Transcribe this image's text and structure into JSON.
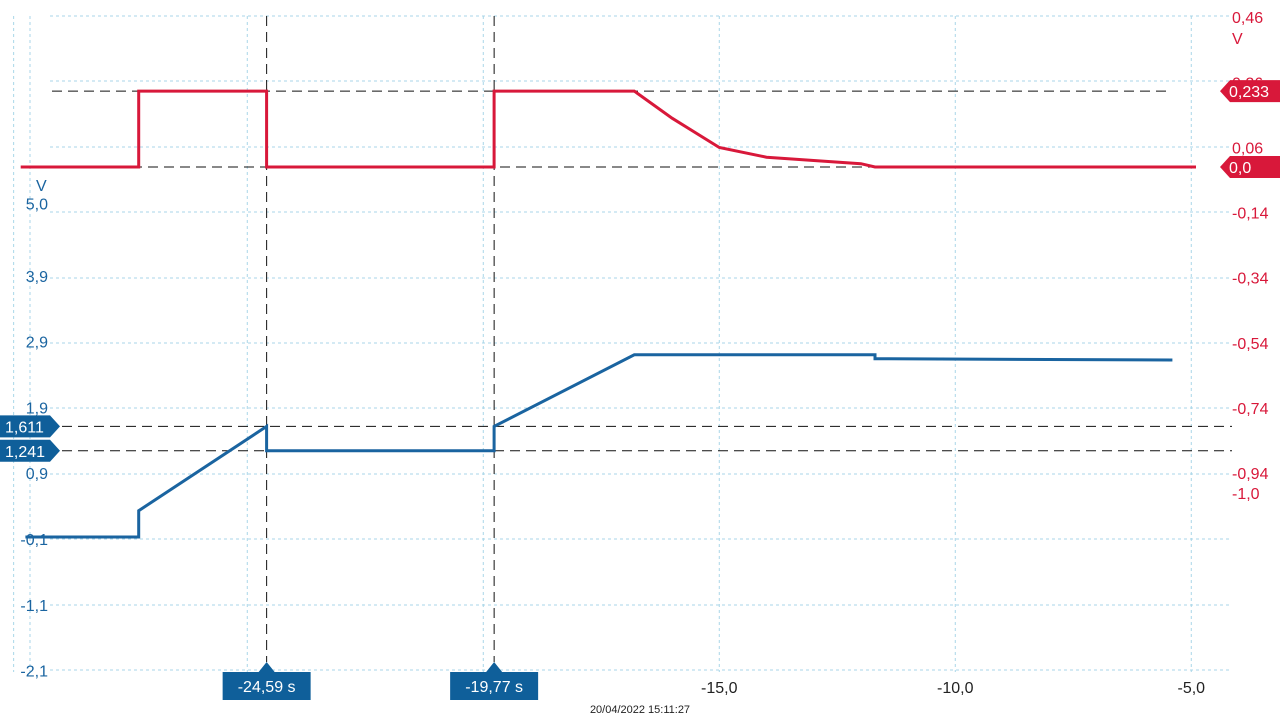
{
  "chart_data": {
    "type": "line",
    "x_ticks": [
      "-15,0",
      "-10,0",
      "-5,0"
    ],
    "x_tick_values": [
      -15,
      -10,
      -5
    ],
    "xlim": [
      -29.9,
      -4.9
    ],
    "timestamp": "20/04/2022 15:11:27",
    "left_axis": {
      "unit": "V",
      "ticks": [
        "5,0",
        "3,9",
        "2,9",
        "1,9",
        "0,9",
        "-0,1",
        "-1,1",
        "-2,1"
      ],
      "tick_values": [
        5.0,
        3.9,
        2.9,
        1.9,
        0.9,
        -0.1,
        -1.1,
        -2.1
      ],
      "color": "#1a64a0"
    },
    "right_axis": {
      "unit": "V",
      "ticks": [
        "0,46",
        "0,26",
        "0,06",
        "-0,14",
        "-0,34",
        "-0,54",
        "-0,74",
        "-0,94",
        "-1,0"
      ],
      "tick_values": [
        0.46,
        0.26,
        0.06,
        -0.14,
        -0.34,
        -0.54,
        -0.74,
        -0.94,
        -1.0
      ],
      "color": "#d8183a"
    },
    "series": [
      {
        "axis": "left",
        "color": "#1a64a0",
        "x": [
          -29.7,
          -27.3,
          -27.3,
          -24.59,
          -24.59,
          -19.77,
          -19.77,
          -16.8,
          -11.7,
          -11.7,
          -5.4
        ],
        "y": [
          -0.07,
          -0.07,
          0.33,
          1.611,
          1.241,
          1.241,
          1.611,
          2.7,
          2.7,
          2.64,
          2.62
        ]
      },
      {
        "axis": "right",
        "color": "#d8183a",
        "x": [
          -29.8,
          -27.3,
          -27.3,
          -24.59,
          -24.59,
          -19.77,
          -19.77,
          -16.8,
          -16.0,
          -15.0,
          -14.0,
          -13.0,
          -12.0,
          -11.7,
          -4.9
        ],
        "y": [
          0.0,
          0.0,
          0.233,
          0.233,
          0.0,
          0.0,
          0.233,
          0.233,
          0.15,
          0.06,
          0.03,
          0.02,
          0.01,
          0.0,
          0.0
        ]
      }
    ],
    "cursors": [
      {
        "label": "-24,59 s",
        "x": -24.59
      },
      {
        "label": "-19,77 s",
        "x": -19.77
      }
    ],
    "left_markers": [
      {
        "label": "1,611",
        "y": 1.611
      },
      {
        "label": "1,241",
        "y": 1.241
      }
    ],
    "right_markers": [
      {
        "label": "0,233",
        "y": 0.233
      },
      {
        "label": "0,0",
        "y": 0.0
      }
    ],
    "grid": true
  }
}
